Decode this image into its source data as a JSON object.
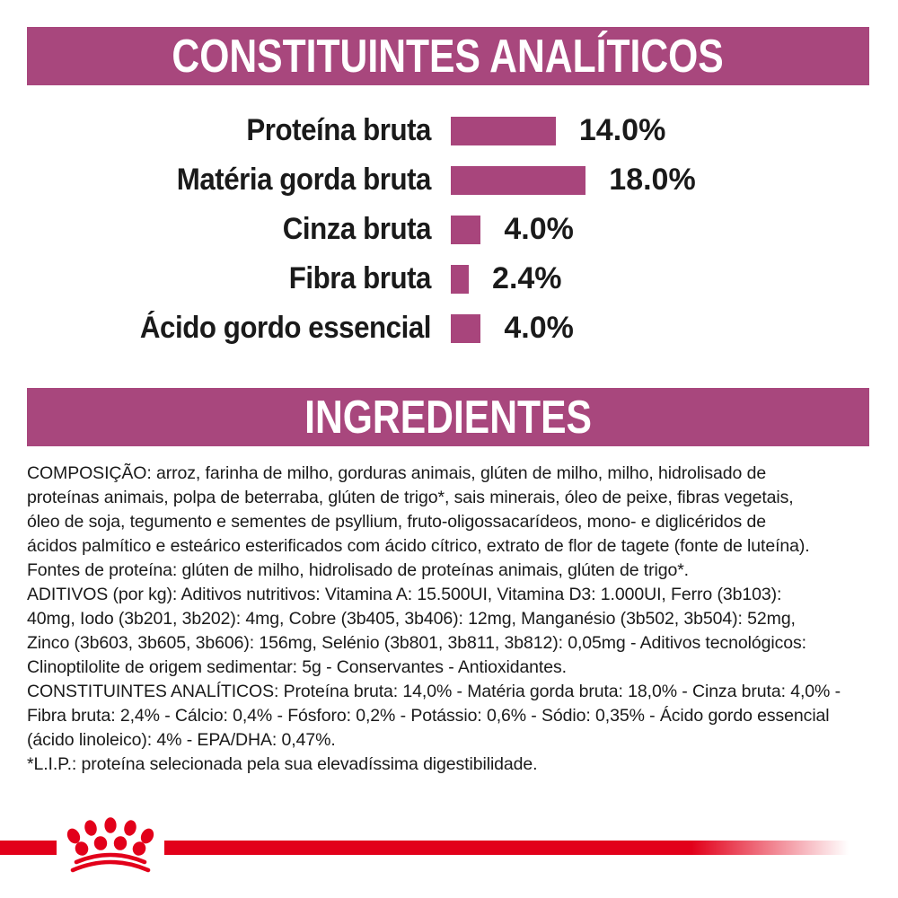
{
  "colors": {
    "accent_magenta": "#a8477d",
    "bar_magenta": "#a8457c",
    "brand_red": "#e2001a",
    "text": "#1a1a1a"
  },
  "banners": {
    "constituents": "CONSTITUINTES ANALÍTICOS",
    "ingredients": "INGREDIENTES"
  },
  "chart_data": {
    "type": "bar",
    "orientation": "horizontal",
    "title": "CONSTITUINTES ANALÍTICOS",
    "categories": [
      "Proteína bruta",
      "Matéria gorda bruta",
      "Cinza bruta",
      "Fibra bruta",
      "Ácido gordo essencial"
    ],
    "values": [
      14.0,
      18.0,
      4.0,
      2.4,
      4.0
    ],
    "value_labels": [
      "14.0%",
      "18.0%",
      "4.0%",
      "2.4%",
      "4.0%"
    ],
    "xlim": [
      0,
      20
    ],
    "grid": false,
    "legend": false,
    "bar_color": "#a8457c"
  },
  "ingredients_text": {
    "lines": [
      "COMPOSIÇÃO: arroz, farinha de milho, gorduras animais, glúten de milho, milho, hidrolisado de",
      "proteínas animais, polpa de beterraba, glúten de trigo*, sais minerais, óleo de peixe, fibras vegetais,",
      "óleo de soja, tegumento e sementes de psyllium, fruto-oligossacarídeos, mono- e diglicéridos de",
      "ácidos palmítico e esteárico esterificados com ácido cítrico, extrato de flor de tagete (fonte de luteína).",
      "Fontes de proteína: glúten de milho, hidrolisado de proteínas animais, glúten de trigo*.",
      "ADITIVOS (por kg): Aditivos nutritivos: Vitamina A: 15.500UI, Vitamina D3: 1.000UI, Ferro (3b103):",
      "40mg, Iodo (3b201, 3b202): 4mg, Cobre (3b405, 3b406): 12mg, Manganésio (3b502, 3b504): 52mg,",
      "Zinco (3b603, 3b605, 3b606): 156mg, Selénio (3b801, 3b811, 3b812): 0,05mg - Aditivos tecnológicos:",
      "Clinoptilolite de origem sedimentar: 5g - Conservantes - Antioxidantes.",
      "CONSTITUINTES ANALÍTICOS: Proteína bruta: 14,0% - Matéria gorda bruta: 18,0% - Cinza bruta: 4,0% -",
      "Fibra bruta: 2,4% - Cálcio: 0,4% - Fósforo: 0,2% - Potássio: 0,6% - Sódio: 0,35% - Ácido gordo essencial",
      "(ácido linoleico): 4% - EPA/DHA: 0,47%.",
      "*L.I.P.: proteína selecionada pela sua elevadíssima digestibilidade."
    ]
  },
  "footer": {
    "logo_icon": "crown-paw-icon",
    "brand": "royal-canin-crown-paw-logo"
  }
}
